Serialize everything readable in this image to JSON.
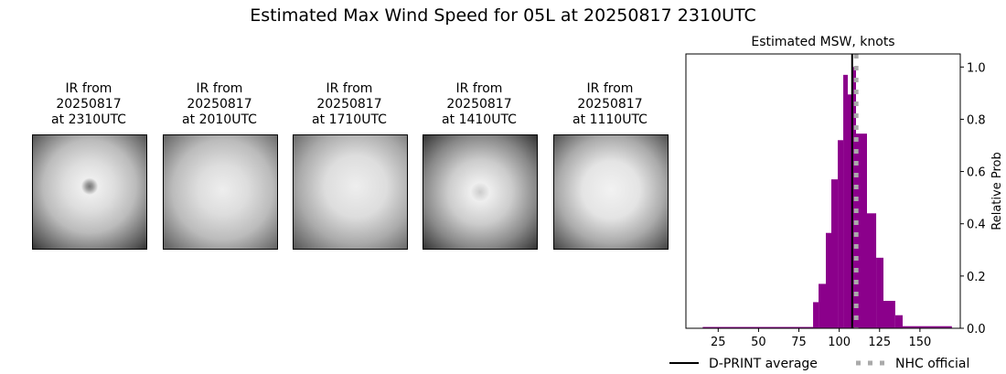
{
  "title": "Estimated Max Wind Speed for 05L at 20250817 2310UTC",
  "panels": [
    {
      "line1": "IR from",
      "line2": "20250817",
      "line3": "at 2310UTC"
    },
    {
      "line1": "IR from",
      "line2": "20250817",
      "line3": "at 2010UTC"
    },
    {
      "line1": "IR from",
      "line2": "20250817",
      "line3": "at 1710UTC"
    },
    {
      "line1": "IR from",
      "line2": "20250817",
      "line3": "at 1410UTC"
    },
    {
      "line1": "IR from",
      "line2": "20250817",
      "line3": "at 1110UTC"
    }
  ],
  "chart_data": {
    "type": "bar",
    "title": "Estimated MSW, knots",
    "ylabel": "Relative Prob",
    "xlim": [
      5,
      175
    ],
    "ylim": [
      0,
      1.05
    ],
    "xticks": [
      25,
      50,
      75,
      100,
      125,
      150
    ],
    "yticks": [
      "0.0",
      "0.2",
      "0.4",
      "0.6",
      "0.8",
      "1.0"
    ],
    "bins": [
      [
        15.4,
        83.8,
        0.005
      ],
      [
        83.8,
        87.2,
        0.1
      ],
      [
        87.2,
        91.7,
        0.17
      ],
      [
        91.7,
        95.1,
        0.365
      ],
      [
        95.1,
        99.1,
        0.57
      ],
      [
        99.1,
        102.5,
        0.72
      ],
      [
        102.5,
        105.3,
        0.97
      ],
      [
        105.3,
        108.1,
        0.895
      ],
      [
        108.1,
        110.4,
        1.0
      ],
      [
        110.4,
        117.2,
        0.745
      ],
      [
        117.2,
        122.9,
        0.44
      ],
      [
        122.9,
        127.4,
        0.27
      ],
      [
        127.4,
        134.7,
        0.105
      ],
      [
        134.7,
        139.3,
        0.05
      ],
      [
        139.3,
        169.8,
        0.008
      ]
    ],
    "bar_color": "#8b008b",
    "dprint_average": 108,
    "nhc_official": 110.5,
    "legend": {
      "dprint": "D-PRINT average",
      "nhc": "NHC official",
      "placement": "bottom"
    }
  }
}
